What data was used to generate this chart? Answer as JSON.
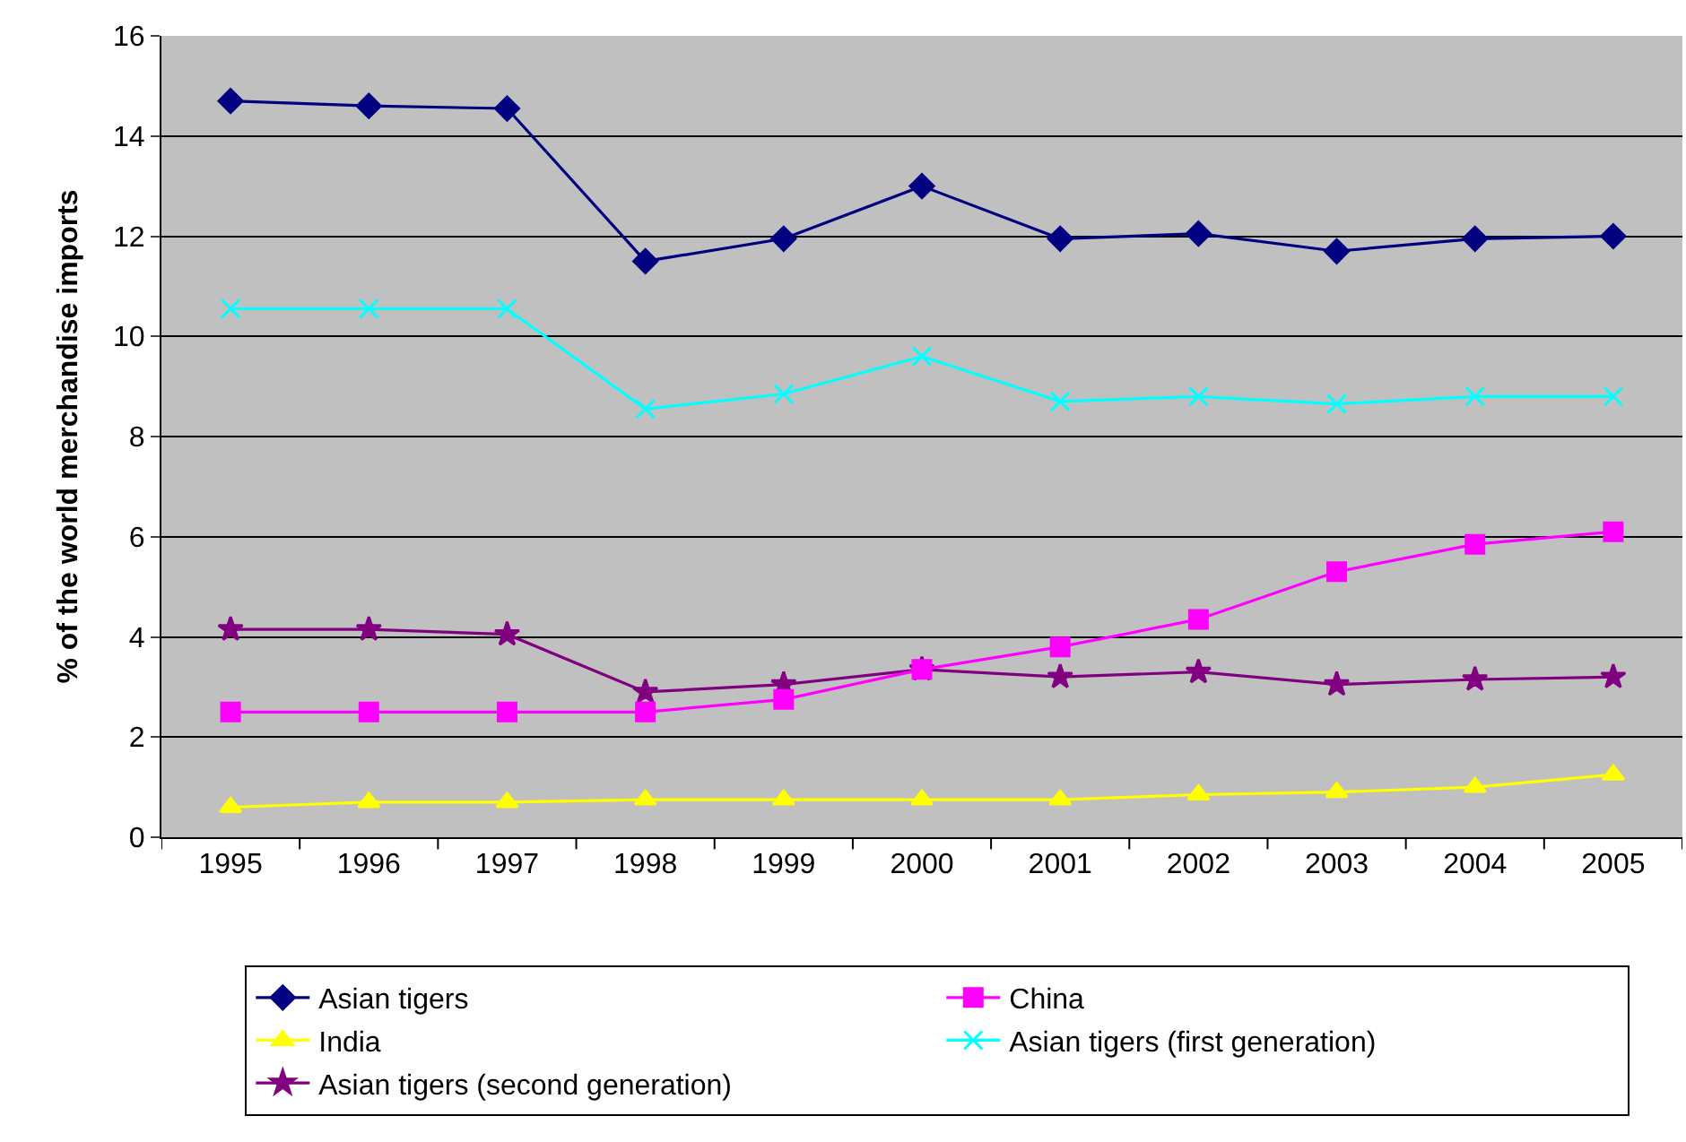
{
  "chart_data": {
    "type": "line",
    "ylabel": "% of the world merchandise imports",
    "categories": [
      "1995",
      "1996",
      "1997",
      "1998",
      "1999",
      "2000",
      "2001",
      "2002",
      "2003",
      "2004",
      "2005"
    ],
    "series": [
      {
        "name": "Asian tigers",
        "color": "#000080",
        "marker": "diamond",
        "values": [
          14.7,
          14.6,
          14.55,
          11.5,
          11.95,
          13.0,
          11.95,
          12.05,
          11.7,
          11.95,
          12.0
        ]
      },
      {
        "name": "China",
        "color": "#ff00ff",
        "marker": "square",
        "values": [
          2.5,
          2.5,
          2.5,
          2.5,
          2.75,
          3.35,
          3.8,
          4.35,
          5.3,
          5.85,
          6.1
        ]
      },
      {
        "name": "India",
        "color": "#ffff00",
        "marker": "triangle",
        "values": [
          0.6,
          0.7,
          0.7,
          0.75,
          0.75,
          0.75,
          0.75,
          0.85,
          0.9,
          1.0,
          1.25
        ]
      },
      {
        "name": "Asian tigers (first generation)",
        "color": "#00ffff",
        "marker": "cross",
        "values": [
          10.55,
          10.55,
          10.55,
          8.55,
          8.85,
          9.6,
          8.7,
          8.8,
          8.65,
          8.8,
          8.8
        ]
      },
      {
        "name": "Asian tigers (second generation)",
        "color": "#800080",
        "marker": "star",
        "values": [
          4.15,
          4.15,
          4.05,
          2.9,
          3.05,
          3.35,
          3.2,
          3.3,
          3.05,
          3.15,
          3.2
        ]
      }
    ],
    "ylim": [
      0,
      16
    ],
    "yticks": [
      0,
      2,
      4,
      6,
      8,
      10,
      12,
      14,
      16
    ],
    "grid": "y",
    "legend": "bottom"
  }
}
